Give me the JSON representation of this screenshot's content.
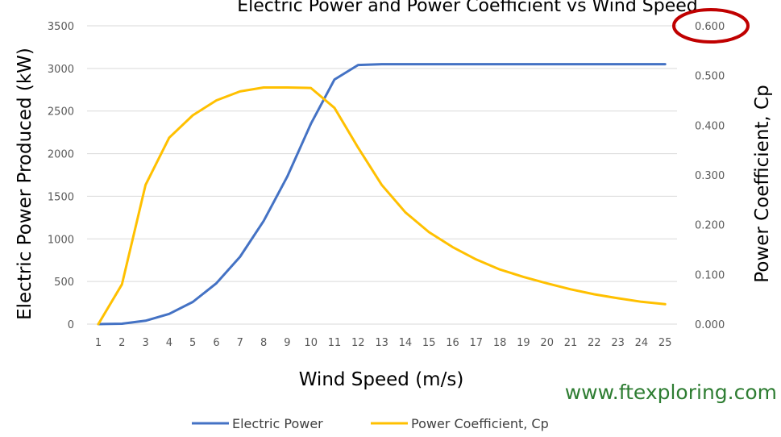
{
  "chart_data": {
    "type": "line",
    "title": "Electric Power and Power Coefficient vs Wind Speed",
    "xlabel": "Wind Speed (m/s)",
    "ylabel_left": "Electric Power Produced (kW)",
    "ylabel_right": "Power Coefficient, Cp",
    "x": [
      1,
      2,
      3,
      4,
      5,
      6,
      7,
      8,
      9,
      10,
      11,
      12,
      13,
      14,
      15,
      16,
      17,
      18,
      19,
      20,
      21,
      22,
      23,
      24,
      25
    ],
    "ylim_left": [
      0,
      3500
    ],
    "yticks_left": [
      "0",
      "500",
      "1000",
      "1500",
      "2000",
      "2500",
      "3000",
      "3500"
    ],
    "ylim_right": [
      0,
      0.6
    ],
    "yticks_right": [
      "0.000",
      "0.100",
      "0.200",
      "0.300",
      "0.400",
      "0.500",
      "0.600"
    ],
    "grid": true,
    "legend": "bottom",
    "series": [
      {
        "name": "Electric Power",
        "axis": "left",
        "color": "#4472c4",
        "values": [
          0,
          5,
          40,
          120,
          260,
          480,
          790,
          1210,
          1730,
          2350,
          2870,
          3040,
          3050,
          3050,
          3050,
          3050,
          3050,
          3050,
          3050,
          3050,
          3050,
          3050,
          3050,
          3050,
          3050
        ]
      },
      {
        "name": "Power Coefficient, Cp",
        "axis": "right",
        "color": "#ffc000",
        "values": [
          0.0,
          0.08,
          0.28,
          0.375,
          0.42,
          0.45,
          0.468,
          0.476,
          0.476,
          0.475,
          0.435,
          0.355,
          0.28,
          0.225,
          0.185,
          0.155,
          0.13,
          0.11,
          0.095,
          0.082,
          0.07,
          0.06,
          0.052,
          0.045,
          0.04
        ]
      }
    ],
    "annotations": [
      "www.ftexploring.com"
    ],
    "highlight": {
      "target": "0.600",
      "shape": "circle",
      "color": "#c00000"
    }
  }
}
